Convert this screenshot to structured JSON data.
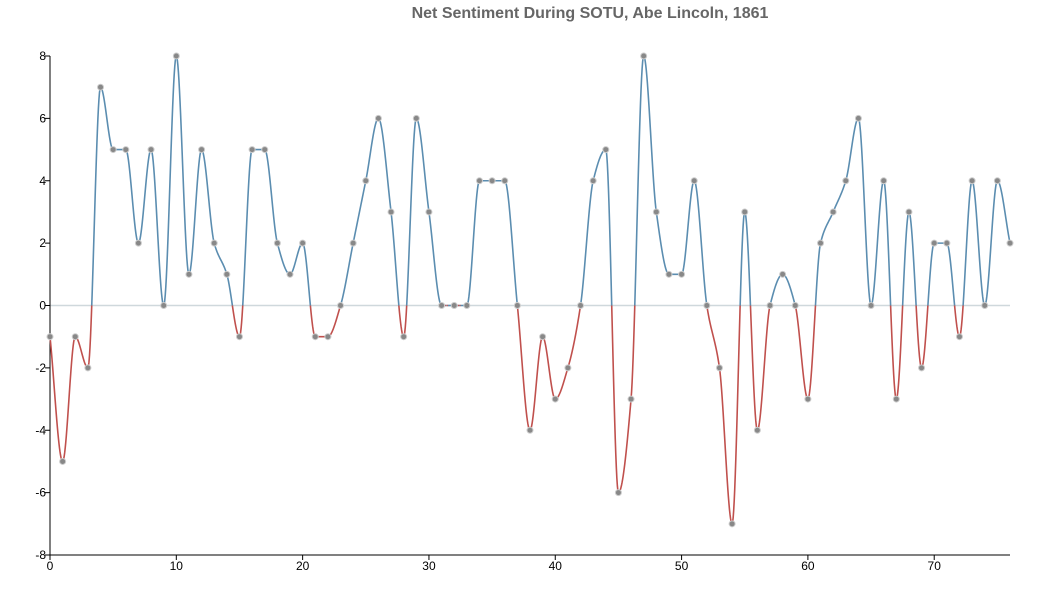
{
  "chart_data": {
    "type": "line",
    "title": "Net Sentiment During SOTU, Abe Lincoln, 1861",
    "xlabel": "",
    "ylabel": "",
    "xlim": [
      0,
      76
    ],
    "ylim": [
      -8,
      8
    ],
    "x_ticks": [
      0,
      10,
      20,
      30,
      40,
      50,
      60,
      70
    ],
    "y_ticks": [
      -8,
      -6,
      -4,
      -2,
      0,
      2,
      4,
      6,
      8
    ],
    "grid": false,
    "baseline": 0,
    "colors": {
      "positive": "#5b8db0",
      "negative": "#c0504d",
      "marker": "#888888",
      "baseline": "#cfd8dc"
    },
    "x": [
      0,
      1,
      2,
      3,
      4,
      5,
      6,
      7,
      8,
      9,
      10,
      11,
      12,
      13,
      14,
      15,
      16,
      17,
      18,
      19,
      20,
      21,
      22,
      23,
      24,
      25,
      26,
      27,
      28,
      29,
      30,
      31,
      32,
      33,
      34,
      35,
      36,
      37,
      38,
      39,
      40,
      41,
      42,
      43,
      44,
      45,
      46,
      47,
      48,
      49,
      50,
      51,
      52,
      53,
      54,
      55,
      56,
      57,
      58,
      59,
      60,
      61,
      62,
      63,
      64,
      65,
      66,
      67,
      68,
      69,
      70,
      71,
      72,
      73,
      74,
      75,
      76
    ],
    "values": [
      -1,
      -5,
      -1,
      -2,
      7,
      5,
      5,
      2,
      5,
      0,
      8,
      1,
      5,
      2,
      1,
      -1,
      5,
      5,
      2,
      1,
      2,
      -1,
      -1,
      0,
      2,
      4,
      6,
      3,
      -1,
      6,
      3,
      0,
      0,
      0,
      4,
      4,
      4,
      0,
      -4,
      -1,
      -3,
      -2,
      0,
      4,
      5,
      -6,
      -3,
      8,
      3,
      1,
      1,
      4,
      0,
      -2,
      -7,
      3,
      -4,
      0,
      1,
      0,
      -3,
      2,
      3,
      4,
      6,
      0,
      4,
      -3,
      3,
      -2,
      2,
      2,
      -1,
      4,
      0,
      4,
      2
    ]
  }
}
